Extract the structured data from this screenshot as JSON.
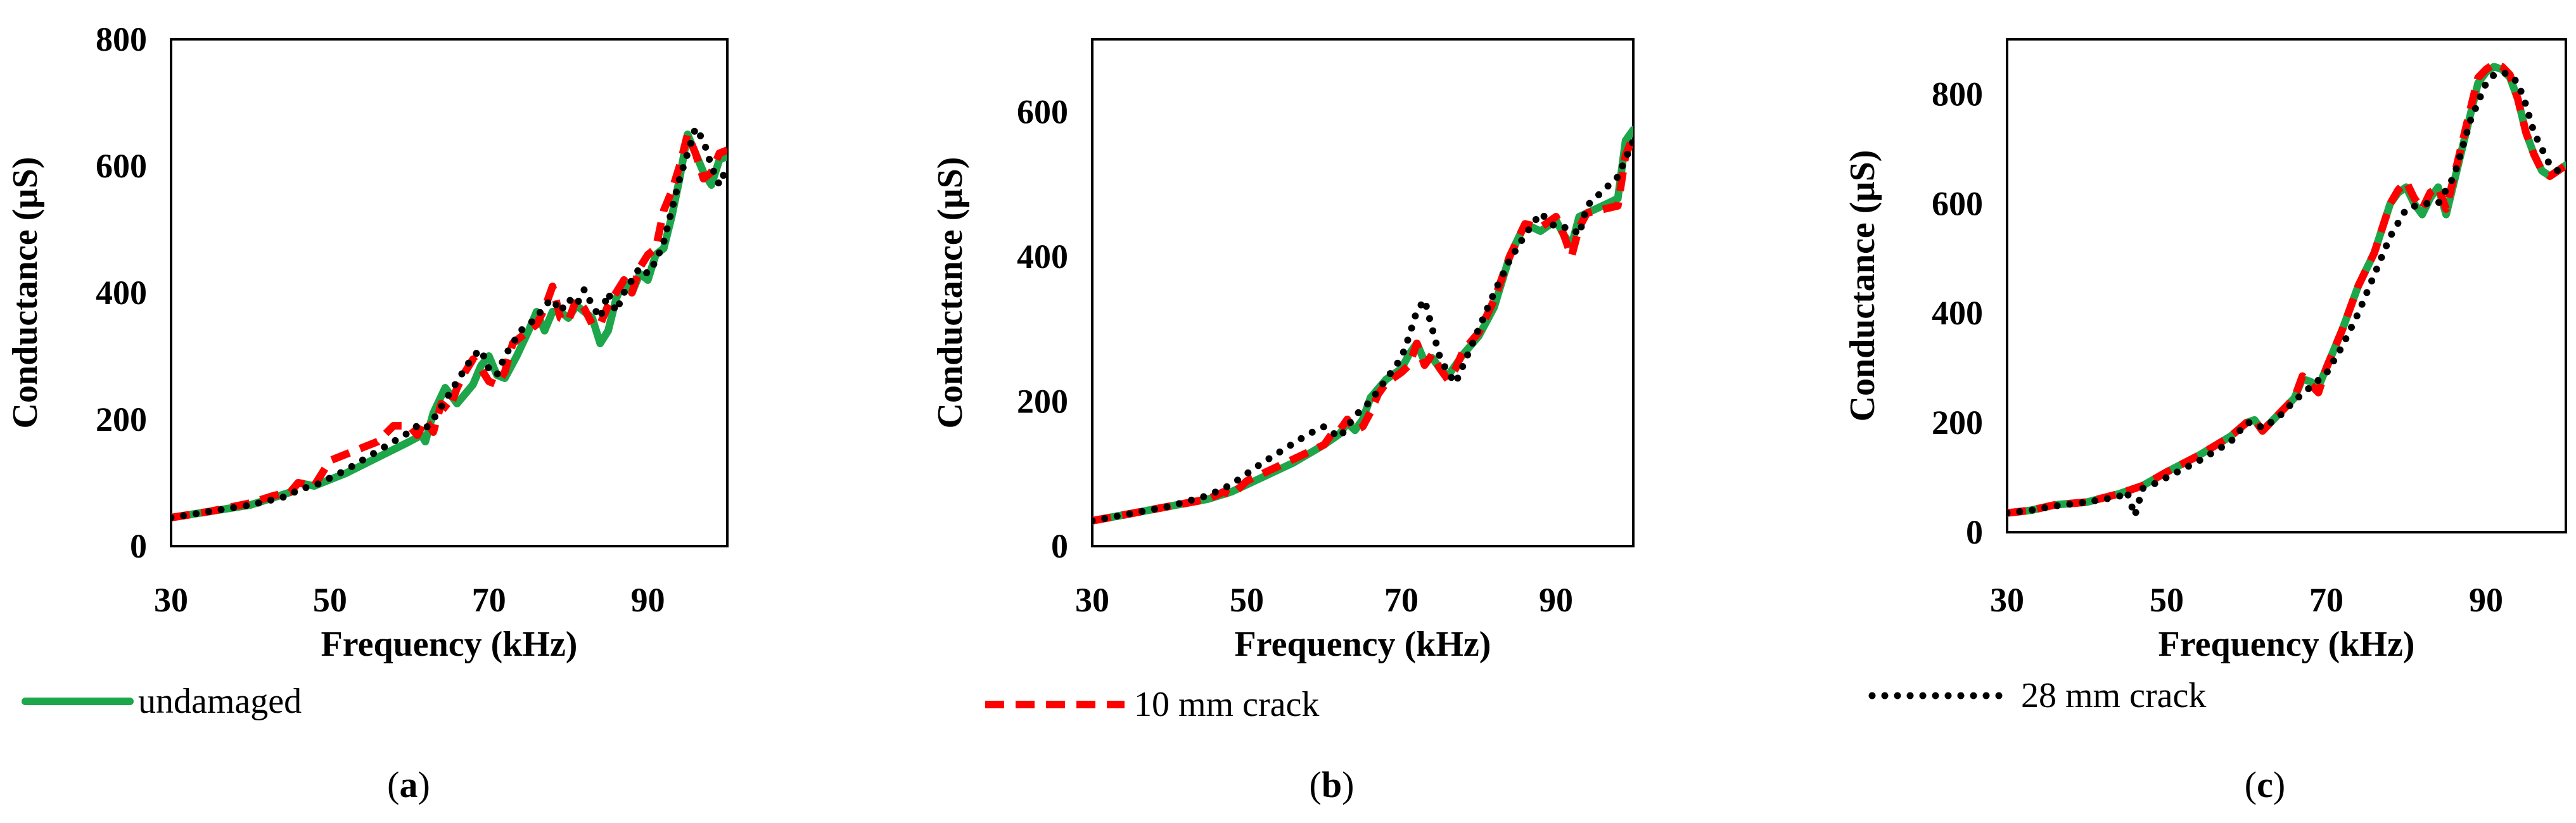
{
  "chart_data": [
    {
      "type": "line",
      "panel": "a",
      "caption_open": "(",
      "caption_letter": "a",
      "caption_close": ")",
      "xlabel": "Frequency (kHz)",
      "ylabel": "Conductance (µS)",
      "xlim": [
        30,
        100
      ],
      "ylim": [
        0,
        800
      ],
      "xticks": [
        30,
        50,
        70,
        90
      ],
      "yticks": [
        0,
        200,
        400,
        600,
        800
      ],
      "series": [
        {
          "name": "undamaged",
          "x": [
            30,
            35,
            40,
            45,
            46,
            48,
            52,
            56,
            60,
            61.5,
            62,
            63,
            64.5,
            66,
            68,
            69,
            70,
            71,
            72,
            73.5,
            75,
            76,
            77,
            78,
            79,
            80,
            81,
            82,
            83,
            84,
            85,
            86,
            87,
            88,
            89,
            90,
            91,
            92,
            93,
            94,
            95,
            96,
            97,
            98,
            99,
            100
          ],
          "values": [
            45,
            55,
            65,
            85,
            100,
            95,
            115,
            140,
            165,
            175,
            165,
            210,
            250,
            225,
            255,
            285,
            300,
            270,
            265,
            300,
            340,
            370,
            340,
            370,
            370,
            360,
            380,
            370,
            360,
            320,
            340,
            390,
            420,
            400,
            430,
            420,
            460,
            470,
            520,
            580,
            650,
            620,
            590,
            570,
            610,
            615
          ]
        },
        {
          "name": "10 mm crack",
          "x": [
            30,
            35,
            40,
            43,
            45,
            46,
            48,
            50,
            52,
            56,
            58,
            60,
            61,
            62,
            63,
            64,
            65,
            66,
            67,
            68,
            69,
            70,
            71,
            72,
            73,
            75,
            76,
            77,
            78,
            79,
            80,
            81,
            82,
            83,
            84,
            85,
            86,
            87,
            88,
            89,
            90,
            91,
            92,
            93,
            94,
            95,
            96,
            97,
            98,
            99,
            100
          ],
          "values": [
            45,
            55,
            68,
            80,
            85,
            100,
            95,
            135,
            145,
            165,
            190,
            190,
            175,
            200,
            180,
            225,
            215,
            250,
            275,
            295,
            280,
            260,
            255,
            275,
            320,
            340,
            350,
            375,
            410,
            360,
            355,
            390,
            375,
            350,
            350,
            380,
            400,
            420,
            400,
            440,
            460,
            470,
            530,
            560,
            600,
            650,
            620,
            580,
            590,
            620,
            625
          ]
        },
        {
          "name": "28 mm crack",
          "x": [
            30,
            35,
            40,
            45,
            46,
            48,
            52,
            56,
            60,
            61,
            62,
            63,
            64,
            65,
            66,
            67,
            68,
            69,
            70,
            71,
            72,
            73,
            74,
            75,
            76,
            77,
            78,
            79,
            80,
            81,
            82,
            83,
            84,
            85,
            86,
            87,
            88,
            89,
            90,
            91,
            92,
            93,
            94,
            95,
            96,
            97,
            98,
            99,
            100
          ],
          "values": [
            45,
            55,
            65,
            80,
            90,
            95,
            120,
            150,
            180,
            190,
            185,
            200,
            220,
            240,
            260,
            280,
            300,
            310,
            280,
            270,
            300,
            320,
            340,
            350,
            360,
            380,
            390,
            370,
            390,
            380,
            405,
            380,
            360,
            400,
            370,
            400,
            420,
            440,
            430,
            450,
            480,
            530,
            580,
            620,
            660,
            640,
            600,
            570,
            600
          ]
        }
      ]
    },
    {
      "type": "line",
      "panel": "b",
      "caption_open": "(",
      "caption_letter": "b",
      "caption_close": ")",
      "xlabel": "Frequency (kHz)",
      "ylabel": "Conductance (µS)",
      "xlim": [
        30,
        100
      ],
      "ylim": [
        0,
        700
      ],
      "xticks": [
        30,
        50,
        70,
        90
      ],
      "yticks": [
        0,
        200,
        400,
        600
      ],
      "series": [
        {
          "name": "undamaged",
          "x": [
            30,
            35,
            40,
            45,
            48,
            52,
            56,
            60,
            62,
            63,
            64,
            65,
            66,
            68,
            70,
            71,
            72,
            73,
            74,
            75,
            76,
            77,
            78,
            80,
            82,
            84,
            86,
            88,
            90,
            91,
            92,
            93,
            94,
            96,
            98,
            99,
            100
          ],
          "values": [
            35,
            45,
            55,
            65,
            75,
            95,
            115,
            140,
            155,
            170,
            160,
            175,
            205,
            230,
            245,
            265,
            280,
            255,
            260,
            245,
            235,
            250,
            265,
            290,
            330,
            400,
            445,
            435,
            450,
            430,
            415,
            455,
            460,
            470,
            480,
            560,
            575
          ]
        },
        {
          "name": "10 mm crack",
          "x": [
            30,
            35,
            40,
            45,
            47,
            48,
            50,
            52,
            56,
            60,
            61,
            62,
            63,
            64,
            65,
            66,
            67,
            68,
            70,
            71,
            72,
            73,
            74,
            75,
            76,
            77,
            78,
            80,
            82,
            84,
            86,
            88,
            90,
            91,
            92,
            93,
            94,
            96,
            98,
            99,
            100
          ],
          "values": [
            35,
            45,
            55,
            65,
            75,
            70,
            90,
            100,
            120,
            140,
            155,
            160,
            175,
            160,
            165,
            185,
            210,
            225,
            240,
            250,
            280,
            250,
            265,
            245,
            230,
            245,
            270,
            295,
            340,
            400,
            445,
            440,
            455,
            430,
            400,
            440,
            460,
            465,
            470,
            540,
            565
          ]
        },
        {
          "name": "28 mm crack",
          "x": [
            30,
            35,
            40,
            45,
            48,
            50,
            52,
            55,
            58,
            60,
            62,
            63,
            64,
            66,
            68,
            70,
            71,
            72,
            73,
            74,
            75,
            76,
            77,
            78,
            80,
            82,
            84,
            86,
            88,
            90,
            92,
            93,
            94,
            96,
            98,
            100
          ],
          "values": [
            35,
            45,
            55,
            70,
            85,
            100,
            115,
            135,
            155,
            165,
            150,
            165,
            180,
            200,
            230,
            260,
            290,
            325,
            340,
            300,
            260,
            240,
            225,
            250,
            300,
            350,
            395,
            430,
            460,
            440,
            440,
            430,
            470,
            490,
            510,
            560
          ]
        }
      ]
    },
    {
      "type": "line",
      "panel": "c",
      "caption_open": "(",
      "caption_letter": "c",
      "caption_close": ")",
      "xlabel": "Frequency (kHz)",
      "ylabel": "Conductance (µS)",
      "xlim": [
        30,
        100
      ],
      "ylim": [
        0,
        900
      ],
      "xticks": [
        30,
        50,
        70,
        90
      ],
      "yticks": [
        0,
        200,
        400,
        600,
        800
      ],
      "series": [
        {
          "name": "undamaged",
          "x": [
            30,
            33,
            36,
            40,
            44,
            47,
            50,
            54,
            58,
            60,
            61,
            62,
            64,
            66,
            67,
            68,
            69,
            70,
            72,
            74,
            76,
            78,
            79,
            80,
            81,
            82,
            83,
            84,
            85,
            86,
            87,
            88,
            89,
            90,
            91,
            92,
            93,
            94,
            95,
            96,
            97,
            98,
            99,
            100
          ],
          "values": [
            35,
            40,
            50,
            55,
            70,
            85,
            110,
            140,
            175,
            200,
            205,
            185,
            215,
            245,
            280,
            275,
            265,
            300,
            370,
            450,
            510,
            600,
            620,
            630,
            600,
            580,
            610,
            630,
            580,
            640,
            700,
            760,
            820,
            840,
            850,
            845,
            830,
            790,
            730,
            690,
            660,
            650,
            660,
            670
          ]
        },
        {
          "name": "10 mm crack",
          "x": [
            30,
            33,
            36,
            40,
            44,
            47,
            50,
            54,
            58,
            60,
            61,
            62,
            64,
            66,
            67,
            68,
            69,
            70,
            72,
            74,
            76,
            78,
            79,
            80,
            81,
            82,
            83,
            84,
            85,
            86,
            87,
            88,
            89,
            90,
            91,
            92,
            93,
            94,
            95,
            96,
            97,
            98,
            99,
            100
          ],
          "values": [
            35,
            40,
            50,
            55,
            70,
            85,
            110,
            140,
            175,
            200,
            205,
            185,
            215,
            245,
            285,
            270,
            255,
            300,
            370,
            450,
            510,
            600,
            625,
            640,
            610,
            590,
            620,
            630,
            590,
            650,
            710,
            770,
            830,
            845,
            855,
            850,
            835,
            790,
            730,
            690,
            660,
            650,
            660,
            670
          ]
        },
        {
          "name": "28 mm crack",
          "x": [
            30,
            33,
            36,
            40,
            44,
            45,
            46,
            47,
            48,
            50,
            54,
            58,
            60,
            61,
            62,
            64,
            66,
            68,
            70,
            72,
            74,
            76,
            78,
            80,
            82,
            84,
            86,
            88,
            90,
            91,
            92,
            93,
            94,
            95,
            96,
            97,
            98,
            99,
            100
          ],
          "values": [
            35,
            40,
            48,
            55,
            65,
            75,
            30,
            80,
            85,
            100,
            130,
            165,
            200,
            200,
            190,
            210,
            240,
            265,
            290,
            340,
            400,
            470,
            540,
            590,
            600,
            600,
            650,
            750,
            820,
            835,
            840,
            835,
            820,
            780,
            730,
            700,
            670,
            660,
            670
          ]
        }
      ]
    }
  ],
  "legend": [
    {
      "name": "undamaged",
      "label": "undamaged",
      "color": "#1da64a",
      "style": "solid"
    },
    {
      "name": "10 mm crack",
      "label": "10 mm crack",
      "color": "#ff0000",
      "style": "dashed"
    },
    {
      "name": "28 mm crack",
      "label": "28 mm crack",
      "color": "#000000",
      "style": "dotted"
    }
  ]
}
